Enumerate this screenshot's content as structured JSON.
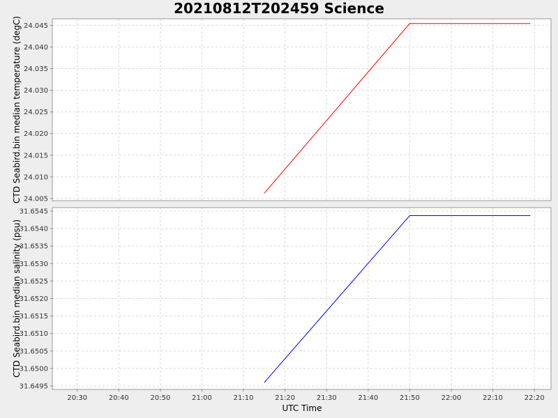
{
  "title": "20210812T202459 Science",
  "xlabel": "UTC Time",
  "x_ticks": [
    "20:30",
    "20:40",
    "20:50",
    "21:00",
    "21:10",
    "21:20",
    "21:30",
    "21:40",
    "21:50",
    "22:00",
    "22:10",
    "22:20"
  ],
  "colors": {
    "temperature": "#ff0000",
    "salinity": "#0000ff",
    "background": "#eeeeee",
    "plot_bg": "#ffffff",
    "grid": "#d8d8d8"
  },
  "chart_data": [
    {
      "type": "line",
      "ylabel": "CTD Seabird.bin median temperature (degC)",
      "xlim": [
        "20:24",
        "22:24"
      ],
      "ylim": [
        24.0045,
        24.0465
      ],
      "y_ticks": [
        "24.005",
        "24.010",
        "24.015",
        "24.020",
        "24.025",
        "24.030",
        "24.035",
        "24.040",
        "24.045"
      ],
      "grid": true,
      "series": [
        {
          "x": [
            "21:15",
            "21:50",
            "22:19"
          ],
          "y": [
            24.0062,
            24.0454,
            24.0454
          ]
        }
      ]
    },
    {
      "type": "line",
      "ylabel": "CTD Seabird.bin median salinity (psu)",
      "xlim": [
        "20:24",
        "22:24"
      ],
      "ylim": [
        31.6494,
        31.6546
      ],
      "y_ticks": [
        "31.6495",
        "31.6500",
        "31.6505",
        "31.6510",
        "31.6515",
        "31.6520",
        "31.6525",
        "31.6530",
        "31.6535",
        "31.6540",
        "31.6545"
      ],
      "grid": true,
      "series": [
        {
          "x": [
            "21:15",
            "21:50",
            "22:19"
          ],
          "y": [
            31.6496,
            31.65437,
            31.65437
          ]
        }
      ]
    }
  ]
}
